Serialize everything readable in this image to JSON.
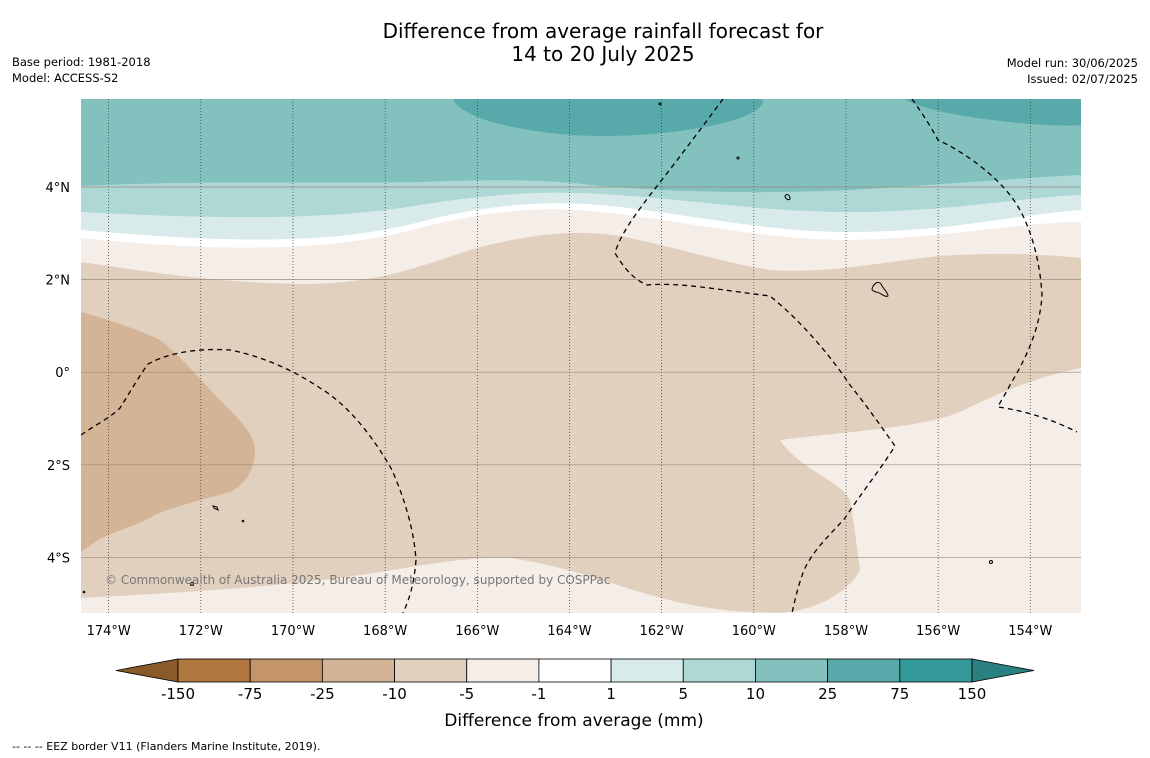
{
  "title": {
    "line1": "Difference from average rainfall forecast for",
    "line2": "14 to 20 July 2025"
  },
  "meta_left": {
    "base_period": "Base period: 1981-2018",
    "model": "Model: ACCESS-S2"
  },
  "meta_right": {
    "model_run": "Model run: 30/06/2025",
    "issued": "Issued: 02/07/2025"
  },
  "map": {
    "lon_range": [
      -174.6,
      -152.9
    ],
    "lat_range": [
      -5.2,
      5.9
    ],
    "lon_ticks": [
      {
        "value": -174,
        "label": "174°W"
      },
      {
        "value": -172,
        "label": "172°W"
      },
      {
        "value": -170,
        "label": "170°W"
      },
      {
        "value": -168,
        "label": "168°W"
      },
      {
        "value": -166,
        "label": "166°W"
      },
      {
        "value": -164,
        "label": "164°W"
      },
      {
        "value": -162,
        "label": "162°W"
      },
      {
        "value": -160,
        "label": "160°W"
      },
      {
        "value": -158,
        "label": "158°W"
      },
      {
        "value": -156,
        "label": "156°W"
      },
      {
        "value": -154,
        "label": "154°W"
      }
    ],
    "lat_ticks": [
      {
        "value": 4,
        "label": "4°N"
      },
      {
        "value": 2,
        "label": "2°N"
      },
      {
        "value": 0,
        "label": "0°"
      },
      {
        "value": -2,
        "label": "2°S"
      },
      {
        "value": -4,
        "label": "4°S"
      }
    ],
    "copyright": "© Commonwealth of Australia 2025, Bureau of Meteorology, supported by COSPPac"
  },
  "colorbar": {
    "boundaries": [
      "-150",
      "-75",
      "-25",
      "-10",
      "-5",
      "-1",
      "1",
      "5",
      "10",
      "25",
      "75",
      "150"
    ],
    "colors": [
      "#8b5a2b",
      "#b07840",
      "#c4956b",
      "#d4b496",
      "#e2d0bf",
      "#f5ede8",
      "#ffffff",
      "#d8eae9",
      "#add8d6",
      "#82c1be",
      "#58a9a9",
      "#35999a",
      "#2a7f80"
    ],
    "label": "Difference from average (mm)"
  },
  "footer": "--  --  -- EEZ border V11 (Flanders Marine Institute, 2019)."
}
